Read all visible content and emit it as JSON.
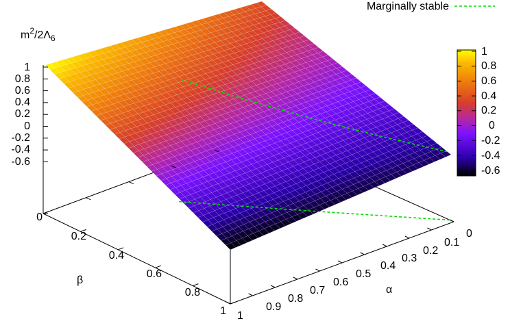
{
  "chart_data": {
    "type": "surface3d",
    "zlabel_main": "m",
    "zlabel_sup": "2",
    "zlabel_rest": "/2Λ",
    "zlabel_sub": "6",
    "xlabel": "α",
    "ylabel": "β",
    "legend": {
      "label": "Marginally stable",
      "color": "#00dd00",
      "position": "top-right"
    },
    "x_axis": {
      "variable": "α",
      "range": [
        0,
        1
      ],
      "ticks": [
        "0",
        "0.1",
        "0.2",
        "0.3",
        "0.4",
        "0.5",
        "0.6",
        "0.7",
        "0.8",
        "0.9",
        "1"
      ]
    },
    "y_axis": {
      "variable": "β",
      "range": [
        0,
        1
      ],
      "ticks": [
        "0",
        "0.2",
        "0.4",
        "0.6",
        "0.8",
        "1"
      ]
    },
    "z_axis": {
      "ticks": [
        "1",
        "0.8",
        "0.6",
        "0.4",
        "0.2",
        "0",
        "-0.2",
        "-0.4",
        "-0.6"
      ]
    },
    "colorbar": {
      "ticks": [
        "1",
        "0.8",
        "0.6",
        "0.4",
        "0.2",
        "0",
        "-0.2",
        "-0.4",
        "-0.6"
      ],
      "range": [
        -0.7,
        1
      ],
      "colors": [
        "#000000",
        "#2a00a8",
        "#7a12ff",
        "#b326a6",
        "#d73f2a",
        "#ee7a0e",
        "#fbba00",
        "#ffff00"
      ]
    },
    "surface_corners": [
      {
        "alpha": 1,
        "beta": 0,
        "value": 1.0
      },
      {
        "alpha": 0,
        "beta": 0,
        "value": 0.35
      },
      {
        "alpha": 0,
        "beta": 1,
        "value": -0.55
      },
      {
        "alpha": 1,
        "beta": 1,
        "value": -0.7
      }
    ],
    "marginal_curve_beta": [
      {
        "alpha": 0.0,
        "beta": 0.08
      },
      {
        "alpha": 0.25,
        "beta": 0.2
      },
      {
        "alpha": 0.5,
        "beta": 0.36
      },
      {
        "alpha": 0.75,
        "beta": 0.5
      },
      {
        "alpha": 1.0,
        "beta": 0.63
      }
    ]
  }
}
